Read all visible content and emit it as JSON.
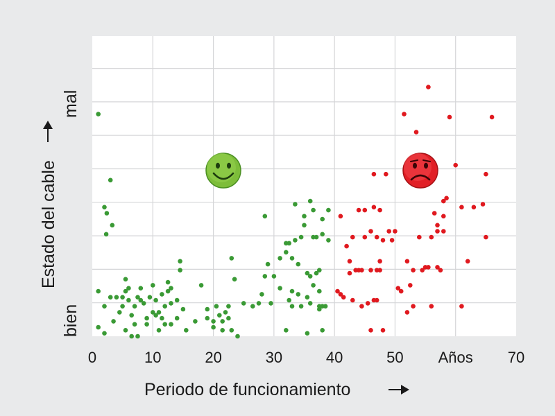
{
  "chart_data": {
    "type": "scatter",
    "xlabel": "Periodo de funcionamiento",
    "ylabel": "Estado del cable",
    "y_low_label": "bien",
    "y_high_label": "mal",
    "x_ticks": [
      "0",
      "10",
      "20",
      "30",
      "40",
      "50",
      "Años",
      "70"
    ],
    "xlim": [
      0,
      70
    ],
    "ylim": [
      0,
      10
    ],
    "grid": true,
    "colors": {
      "good": "#3a9a35",
      "bad": "#e0191f",
      "grid": "#d5d6d8",
      "plot_bg": "#ffffff",
      "page_bg": "#e9eaeb"
    },
    "icons": {
      "good": "smiley-face-icon",
      "bad": "sad-face-icon"
    },
    "series": [
      {
        "color": "#3a9a35",
        "points": [
          [
            1,
            7.4
          ],
          [
            3,
            5.2
          ],
          [
            2,
            4.3
          ],
          [
            2.4,
            4.1
          ],
          [
            3.3,
            3.7
          ],
          [
            2.3,
            3.4
          ],
          [
            1,
            1.5
          ],
          [
            2,
            1.0
          ],
          [
            1,
            0.3
          ],
          [
            2,
            0.1
          ],
          [
            3,
            1.3
          ],
          [
            3.5,
            0.5
          ],
          [
            4,
            1.3
          ],
          [
            4.5,
            0.8
          ],
          [
            5,
            1.3
          ],
          [
            5.5,
            1.5
          ],
          [
            5.5,
            1.9
          ],
          [
            5,
            1.0
          ],
          [
            6,
            1.6
          ],
          [
            6,
            1.2
          ],
          [
            6.5,
            0.7
          ],
          [
            5.5,
            0.2
          ],
          [
            6.5,
            0.0
          ],
          [
            7,
            1.0
          ],
          [
            7,
            0.4
          ],
          [
            7.5,
            1.3
          ],
          [
            8,
            1.2
          ],
          [
            8,
            1.6
          ],
          [
            7.5,
            0.0
          ],
          [
            8.5,
            1.1
          ],
          [
            9,
            0.6
          ],
          [
            9,
            0.4
          ],
          [
            9.5,
            1.3
          ],
          [
            10,
            1.7
          ],
          [
            10,
            0.8
          ],
          [
            10.5,
            1.2
          ],
          [
            10.5,
            0.7
          ],
          [
            11,
            0.8
          ],
          [
            11,
            0.2
          ],
          [
            11.5,
            1.4
          ],
          [
            11.5,
            0.6
          ],
          [
            12,
            1.0
          ],
          [
            12,
            0.4
          ],
          [
            12.5,
            1.8
          ],
          [
            12.5,
            1.5
          ],
          [
            13,
            1.6
          ],
          [
            13,
            1.1
          ],
          [
            13,
            0.4
          ],
          [
            14,
            1.2
          ],
          [
            14,
            0.6
          ],
          [
            14.5,
            2.2
          ],
          [
            14.5,
            2.5
          ],
          [
            15,
            0.9
          ],
          [
            15.5,
            0.2
          ],
          [
            17,
            0.5
          ],
          [
            18,
            1.7
          ],
          [
            19,
            0.6
          ],
          [
            19,
            0.9
          ],
          [
            20,
            0.5
          ],
          [
            20,
            0.3
          ],
          [
            20.5,
            1.0
          ],
          [
            21,
            0.7
          ],
          [
            21.5,
            0.5
          ],
          [
            21.5,
            0.2
          ],
          [
            22,
            0.8
          ],
          [
            22.5,
            1.0
          ],
          [
            22.5,
            0.6
          ],
          [
            23,
            0.2
          ],
          [
            23,
            2.6
          ],
          [
            23.5,
            1.9
          ],
          [
            24,
            0.0
          ],
          [
            25,
            1.1
          ],
          [
            26.5,
            1.0
          ],
          [
            27.5,
            1.1
          ],
          [
            28,
            1.4
          ],
          [
            28.5,
            2.0
          ],
          [
            29,
            2.4
          ],
          [
            29.5,
            1.1
          ],
          [
            28.5,
            4.0
          ],
          [
            30,
            2.0
          ],
          [
            31,
            2.6
          ],
          [
            31,
            1.6
          ],
          [
            32,
            2.8
          ],
          [
            32,
            3.1
          ],
          [
            32.5,
            3.1
          ],
          [
            32.5,
            1.2
          ],
          [
            33,
            2.6
          ],
          [
            33,
            1.0
          ],
          [
            33,
            1.5
          ],
          [
            33.5,
            3.2
          ],
          [
            33.5,
            4.4
          ],
          [
            34,
            2.4
          ],
          [
            34,
            1.4
          ],
          [
            34.5,
            3.3
          ],
          [
            34.5,
            1.0
          ],
          [
            35,
            4.0
          ],
          [
            35,
            3.7
          ],
          [
            35.5,
            2.1
          ],
          [
            35.5,
            1.3
          ],
          [
            35.5,
            0.1
          ],
          [
            36,
            1.1
          ],
          [
            36,
            2.0
          ],
          [
            36,
            4.5
          ],
          [
            36.5,
            3.3
          ],
          [
            36.5,
            4.2
          ],
          [
            37,
            3.3
          ],
          [
            37,
            2.1
          ],
          [
            37.5,
            2.2
          ],
          [
            37.5,
            1.5
          ],
          [
            37.5,
            1.0
          ],
          [
            38,
            3.4
          ],
          [
            38,
            1.0
          ],
          [
            38,
            3.9
          ],
          [
            38.5,
            1.0
          ],
          [
            39,
            4.2
          ],
          [
            39,
            3.2
          ],
          [
            32,
            0.2
          ],
          [
            38,
            0.2
          ],
          [
            37.5,
            0.9
          ],
          [
            36.5,
            1.7
          ]
        ]
      },
      {
        "color": "#e0191f",
        "points": [
          [
            40.5,
            1.5
          ],
          [
            41,
            1.4
          ],
          [
            41,
            4.0
          ],
          [
            41.5,
            1.3
          ],
          [
            42,
            3.0
          ],
          [
            42.5,
            2.5
          ],
          [
            42.5,
            2.1
          ],
          [
            43,
            1.2
          ],
          [
            43,
            3.3
          ],
          [
            43.5,
            2.2
          ],
          [
            44,
            4.2
          ],
          [
            44,
            2.2
          ],
          [
            44.5,
            1.0
          ],
          [
            44.5,
            2.2
          ],
          [
            45,
            4.2
          ],
          [
            45,
            3.3
          ],
          [
            45.5,
            1.1
          ],
          [
            46,
            3.5
          ],
          [
            46,
            0.2
          ],
          [
            46,
            2.2
          ],
          [
            46.5,
            1.2
          ],
          [
            46.5,
            5.4
          ],
          [
            46.5,
            4.3
          ],
          [
            47,
            3.3
          ],
          [
            47,
            2.2
          ],
          [
            47,
            1.2
          ],
          [
            47.5,
            4.2
          ],
          [
            47.5,
            2.5
          ],
          [
            47.5,
            2.2
          ],
          [
            48,
            0.2
          ],
          [
            48,
            3.2
          ],
          [
            48.5,
            5.4
          ],
          [
            49,
            3.5
          ],
          [
            49.5,
            3.2
          ],
          [
            50,
            3.5
          ],
          [
            50.5,
            1.6
          ],
          [
            51,
            1.5
          ],
          [
            51.5,
            7.4
          ],
          [
            52,
            0.8
          ],
          [
            52,
            2.5
          ],
          [
            52.5,
            1.7
          ],
          [
            53,
            1.0
          ],
          [
            53,
            2.2
          ],
          [
            53.5,
            6.8
          ],
          [
            54,
            3.3
          ],
          [
            54.5,
            2.2
          ],
          [
            55,
            2.3
          ],
          [
            55.5,
            2.3
          ],
          [
            55.5,
            8.3
          ],
          [
            56,
            1.0
          ],
          [
            56,
            3.3
          ],
          [
            56.5,
            4.1
          ],
          [
            57,
            2.3
          ],
          [
            57,
            3.5
          ],
          [
            57,
            3.7
          ],
          [
            57.5,
            2.2
          ],
          [
            58,
            4.5
          ],
          [
            58,
            3.5
          ],
          [
            58.5,
            4.6
          ],
          [
            58,
            4.0
          ],
          [
            59,
            7.3
          ],
          [
            60,
            5.7
          ],
          [
            61,
            1.0
          ],
          [
            61,
            4.3
          ],
          [
            62,
            2.5
          ],
          [
            63,
            4.3
          ],
          [
            64.5,
            4.4
          ],
          [
            65,
            3.3
          ],
          [
            65,
            5.4
          ],
          [
            66,
            7.3
          ]
        ]
      }
    ]
  }
}
